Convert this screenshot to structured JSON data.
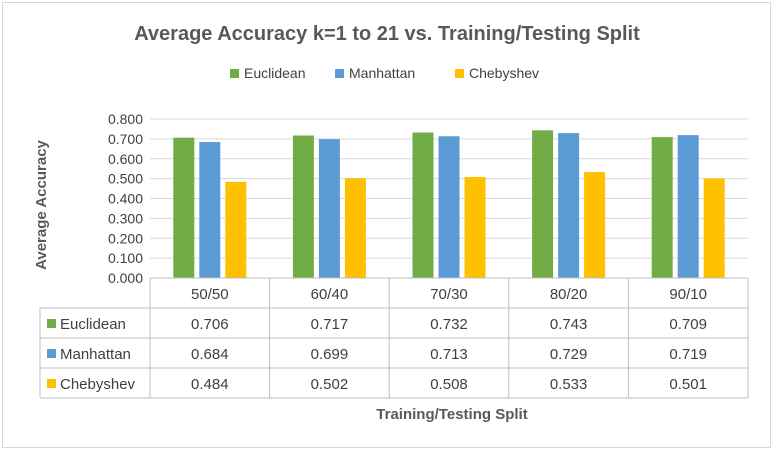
{
  "chart_data": {
    "type": "bar",
    "title": "Average Accuracy k=1 to 21 vs. Training/Testing Split",
    "xlabel": "Training/Testing Split",
    "ylabel": "Average Accuracy",
    "ylim": [
      0,
      0.8
    ],
    "yticks": [
      "0.000",
      "0.100",
      "0.200",
      "0.300",
      "0.400",
      "0.500",
      "0.600",
      "0.700",
      "0.800"
    ],
    "grid": true,
    "legend_position": "top",
    "categories": [
      "50/50",
      "60/40",
      "70/30",
      "80/20",
      "90/10"
    ],
    "series": [
      {
        "name": "Euclidean",
        "color": "#70ad47",
        "values": [
          0.706,
          0.717,
          0.732,
          0.743,
          0.709
        ],
        "labels": [
          "0.706",
          "0.717",
          "0.732",
          "0.743",
          "0.709"
        ]
      },
      {
        "name": "Manhattan",
        "color": "#5b9bd5",
        "values": [
          0.684,
          0.699,
          0.713,
          0.729,
          0.719
        ],
        "labels": [
          "0.684",
          "0.699",
          "0.713",
          "0.729",
          "0.719"
        ]
      },
      {
        "name": "Chebyshev",
        "color": "#ffc000",
        "values": [
          0.484,
          0.502,
          0.508,
          0.533,
          0.501
        ],
        "labels": [
          "0.484",
          "0.502",
          "0.508",
          "0.533",
          "0.501"
        ]
      }
    ]
  }
}
